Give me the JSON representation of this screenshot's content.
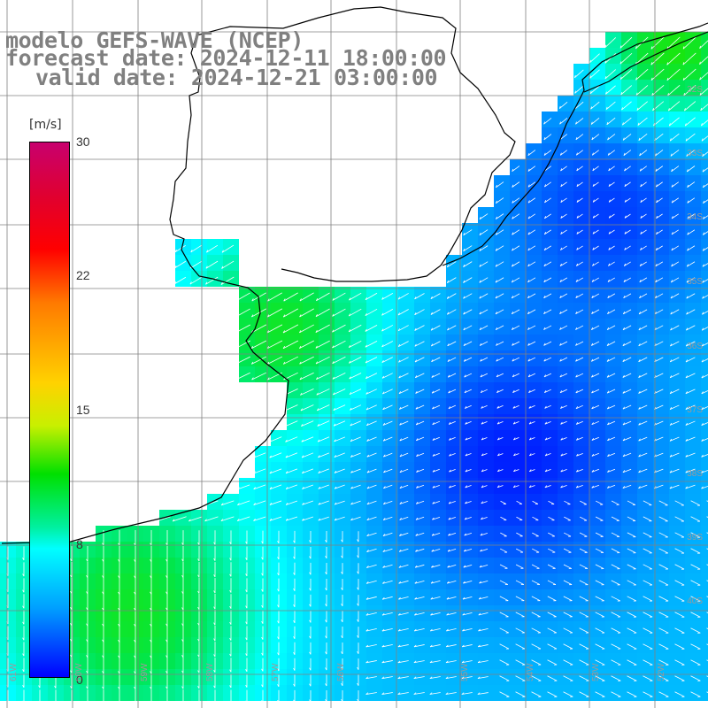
{
  "title": {
    "model": "modelo GEFS-WAVE (NCEP)",
    "forecast": "forecast date: 2024-12-11 18:00:00",
    "valid": "valid date: 2024-12-21 03:00:00"
  },
  "colorbar": {
    "units": "[m/s]",
    "ticks": [
      {
        "label": "30",
        "value": 30
      },
      {
        "label": "22",
        "value": 22
      },
      {
        "label": "15",
        "value": 15
      },
      {
        "label": "8",
        "value": 8
      },
      {
        "label": "0",
        "value": 0
      }
    ],
    "min": 0,
    "max": 30
  },
  "latitude_labels": [
    "32S",
    "33S",
    "34S",
    "35S",
    "36S",
    "37S",
    "38S",
    "39S",
    "40S"
  ],
  "longitude_labels": [
    "61W",
    "60W",
    "59W",
    "58W",
    "57W",
    "56W",
    "55W",
    "54W",
    "53W",
    "52W"
  ],
  "colors": {
    "land": "#ffffff",
    "coastline": "#000000",
    "grid": "#808080",
    "arrows": "#ffffff",
    "title_text": "#808080"
  },
  "field": "surface wind speed and direction"
}
